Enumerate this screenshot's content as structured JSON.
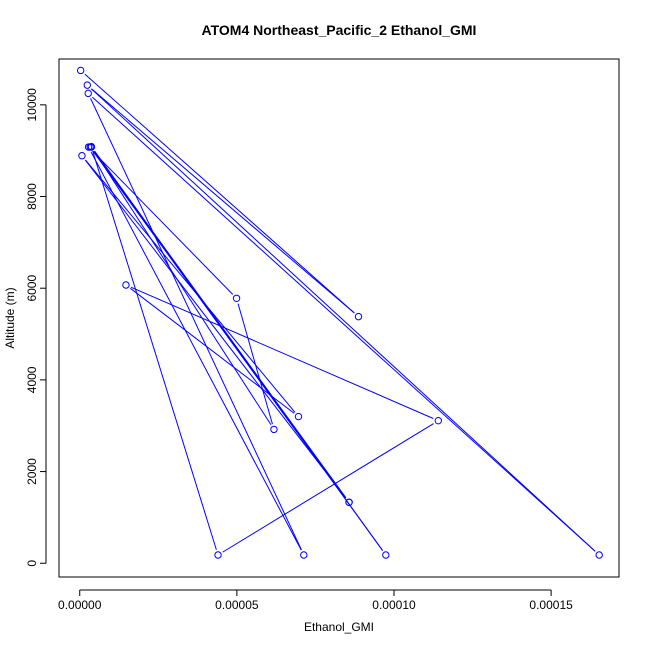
{
  "chart_data": {
    "type": "line",
    "title": "ATOM4 Northeast_Pacific_2 Ethanol_GMI",
    "xlabel": "Ethanol_GMI",
    "ylabel": "Altitude (m)",
    "xlim": [
      -6.6e-06,
      0.0001716
    ],
    "ylim": [
      -300,
      11000
    ],
    "x_ticks": [
      0,
      5e-05,
      0.0001,
      0.00015
    ],
    "x_tick_labels": [
      "0.00000",
      "0.00005",
      "0.00010",
      "0.00015"
    ],
    "y_ticks": [
      0,
      2000,
      4000,
      6000,
      8000,
      10000
    ],
    "y_tick_labels": [
      "0",
      "2000",
      "4000",
      "6000",
      "8000",
      "10000"
    ],
    "grid": false,
    "marker": "open-circle",
    "color": "#0000ff",
    "series": [
      {
        "x": [
          3e-07,
          8.87e-05,
          2.4e-06,
          0.0001653,
          2.7e-06,
          7.13e-05,
          2.8e-06,
          4.99e-05,
          6.18e-05,
          3.7e-06,
          9.74e-05,
          3.3e-06,
          8.57e-05,
          7e-07,
          6.96e-05,
          1.47e-05,
          0.0001141,
          4.4e-05,
          3.7e-06,
          8.57e-05
        ],
        "y": [
          10750,
          5380,
          10430,
          180,
          10250,
          180,
          9080,
          5780,
          2920,
          9090,
          180,
          9080,
          1330,
          8890,
          3200,
          6070,
          3110,
          180,
          9080,
          1330
        ]
      }
    ]
  }
}
